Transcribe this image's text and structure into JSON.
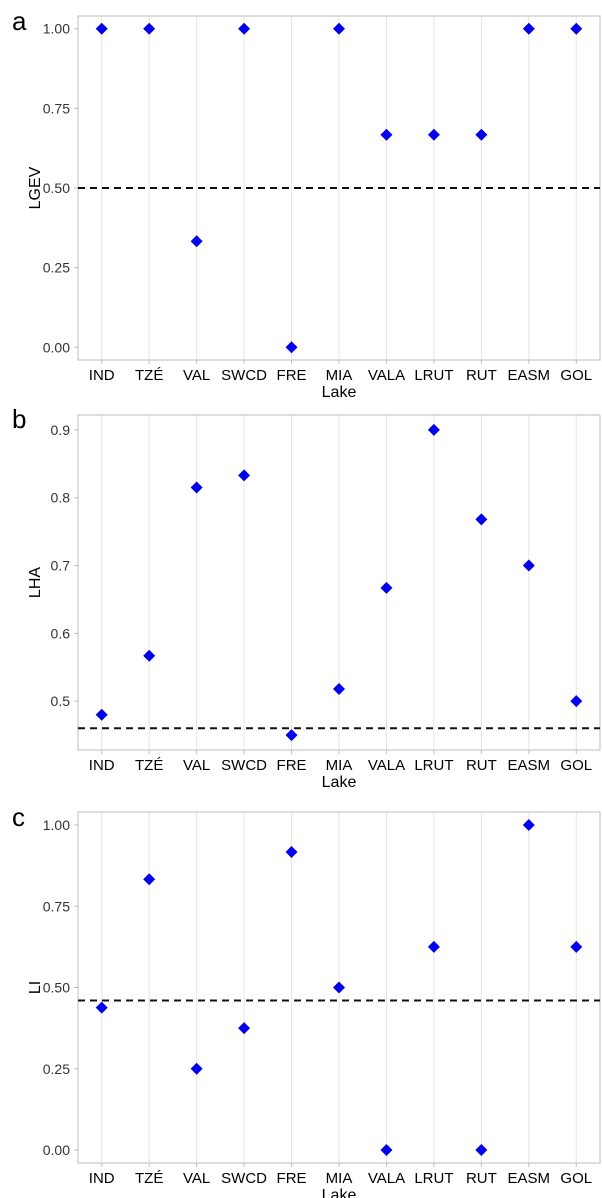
{
  "colors": {
    "point": "#0000ee",
    "panel_border": "#bdbdbd",
    "gridline": "#e4e4e4",
    "reference_line": "#111111",
    "text": "#000000",
    "tick_text": "#333333"
  },
  "chart_data": [
    {
      "type": "scatter",
      "panel_label": "a",
      "xlabel": "Lake",
      "ylabel": "LGEV",
      "categories": [
        "IND",
        "TZÉ",
        "VAL",
        "SWCD",
        "FRE",
        "MIA",
        "VALA",
        "LRUT",
        "RUT",
        "EASM",
        "GOL"
      ],
      "values": [
        1.0,
        1.0,
        0.333,
        1.0,
        0.0,
        1.0,
        0.667,
        0.667,
        0.667,
        1.0,
        1.0
      ],
      "reference_line": 0.5,
      "ylim": [
        -0.04,
        1.04
      ],
      "yticks": [
        0.0,
        0.25,
        0.5,
        0.75,
        1.0
      ],
      "ytick_labels": [
        "0.00",
        "0.25",
        "0.50",
        "0.75",
        "1.00"
      ],
      "grid": "vertical",
      "marker": "diamond"
    },
    {
      "type": "scatter",
      "panel_label": "b",
      "xlabel": "Lake",
      "ylabel": "LHA",
      "categories": [
        "IND",
        "TZÉ",
        "VAL",
        "SWCD",
        "FRE",
        "MIA",
        "VALA",
        "LRUT",
        "RUT",
        "EASM",
        "GOL"
      ],
      "values": [
        0.48,
        0.567,
        0.815,
        0.833,
        0.45,
        0.518,
        0.667,
        0.9,
        0.768,
        0.7,
        0.5
      ],
      "reference_line": 0.46,
      "ylim": [
        0.428,
        0.922
      ],
      "yticks": [
        0.5,
        0.6,
        0.7,
        0.8,
        0.9
      ],
      "ytick_labels": [
        "0.5",
        "0.6",
        "0.7",
        "0.8",
        "0.9"
      ],
      "grid": "vertical",
      "marker": "diamond"
    },
    {
      "type": "scatter",
      "panel_label": "c",
      "xlabel": "Lake",
      "ylabel": "LI",
      "categories": [
        "IND",
        "TZÉ",
        "VAL",
        "SWCD",
        "FRE",
        "MIA",
        "VALA",
        "LRUT",
        "RUT",
        "EASM",
        "GOL"
      ],
      "values": [
        0.438,
        0.833,
        0.25,
        0.375,
        0.917,
        0.5,
        0.0,
        0.625,
        0.0,
        1.0,
        0.625
      ],
      "reference_line": 0.46,
      "ylim": [
        -0.04,
        1.04
      ],
      "yticks": [
        0.0,
        0.25,
        0.5,
        0.75,
        1.0
      ],
      "ytick_labels": [
        "0.00",
        "0.25",
        "0.50",
        "0.75",
        "1.00"
      ],
      "grid": "vertical",
      "marker": "diamond"
    }
  ]
}
